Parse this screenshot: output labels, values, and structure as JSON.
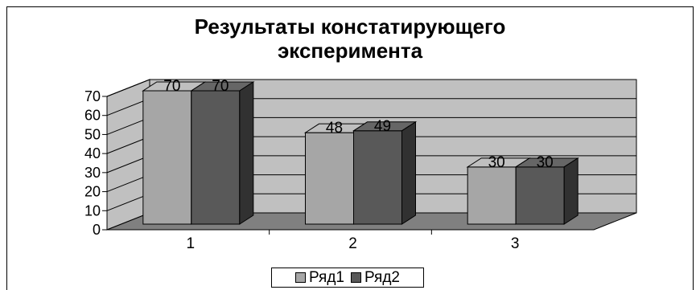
{
  "chart_data": {
    "type": "bar",
    "title": "Результаты констатирующего эксперимента",
    "title_lines": [
      "Результаты констатирующего",
      "эксперимента"
    ],
    "categories": [
      "1",
      "2",
      "3"
    ],
    "series": [
      {
        "name": "Ряд1",
        "values": [
          70,
          48,
          30
        ],
        "color": "#a6a6a6"
      },
      {
        "name": "Ряд2",
        "values": [
          70,
          49,
          30
        ],
        "color": "#595959"
      }
    ],
    "y_ticks": [
      "0",
      "10",
      "20",
      "30",
      "40",
      "50",
      "60",
      "70"
    ],
    "ylim": [
      0,
      70
    ],
    "grid": true,
    "legend_position": "bottom",
    "wall_color": "#c0c0c0",
    "floor_color": "#808080"
  }
}
